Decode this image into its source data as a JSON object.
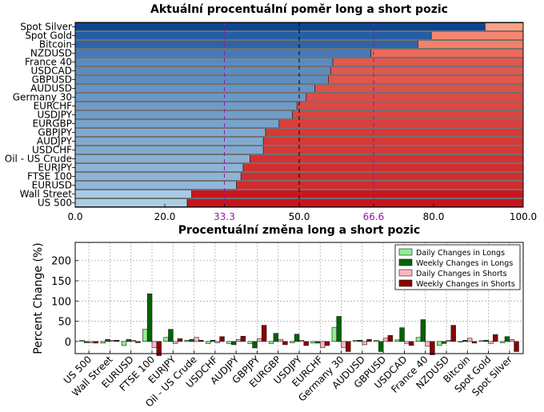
{
  "chart_data": [
    {
      "type": "bar",
      "orientation": "horizontal",
      "stacked": true,
      "title": "Aktuální procentuální poměr long a short pozic",
      "categories": [
        "Spot Silver",
        "Spot Gold",
        "Bitcoin",
        "NZDUSD",
        "France 40",
        "USDCAD",
        "GBPUSD",
        "AUDUSD",
        "Germany 30",
        "EURCHF",
        "USDJPY",
        "EURGBP",
        "GBPJPY",
        "AUDJPY",
        "USDCHF",
        "Oil - US Crude",
        "EURJPY",
        "FTSE 100",
        "EURUSD",
        "Wall Street",
        "US 500"
      ],
      "series": [
        {
          "name": "",
          "values": [
            91.5,
            79.5,
            76.5,
            66.0,
            57.5,
            57.0,
            56.5,
            53.5,
            51.5,
            49.5,
            48.5,
            45.5,
            42.5,
            42.0,
            42.0,
            39.0,
            37.5,
            37.0,
            36.0,
            26.0,
            25.0
          ]
        },
        {
          "name": "",
          "values": [
            8.5,
            20.5,
            23.5,
            34.0,
            42.5,
            43.0,
            43.5,
            46.5,
            48.5,
            50.5,
            51.5,
            54.5,
            57.5,
            58.0,
            58.0,
            61.0,
            62.5,
            63.0,
            64.0,
            74.0,
            75.0
          ]
        }
      ],
      "xlim": [
        0,
        100
      ],
      "xticks": [
        "0.0",
        "20.0",
        "33.3",
        "50.0",
        "66.6",
        "80.0",
        "100.0"
      ],
      "reference_lines": [
        33.3,
        50.0,
        66.6
      ],
      "xlabel": "",
      "ylabel": ""
    },
    {
      "type": "bar",
      "title": "Procentuální změna long a short pozic",
      "ylabel": "Percent Change (%)",
      "xlabel": "",
      "ylim": [
        -30,
        245
      ],
      "yticks": [
        "0",
        "50",
        "100",
        "150",
        "200"
      ],
      "grid": true,
      "legend_position": "top-right",
      "categories": [
        "US 500",
        "Wall Street",
        "EURUSD",
        "FTSE 100",
        "EURJPY",
        "Oil - US Crude",
        "USDCHF",
        "AUDJPY",
        "GBPJPY",
        "EURGBP",
        "USDJPY",
        "EURCHF",
        "Germany 30",
        "AUDUSD",
        "GBPUSD",
        "USDCAD",
        "France 40",
        "NZDUSD",
        "Bitcoin",
        "Spot Gold",
        "Spot Silver"
      ],
      "series": [
        {
          "name": "Daily Changes in Longs",
          "color": "#90ee90",
          "values": [
            3,
            -4,
            -10,
            30,
            10,
            3,
            -5,
            -5,
            -5,
            -5,
            -3,
            -4,
            35,
            3,
            3,
            4,
            10,
            -10,
            -1,
            2,
            -3
          ]
        },
        {
          "name": "Weekly Changes in Longs",
          "color": "#006400",
          "values": [
            -3,
            5,
            5,
            118,
            30,
            5,
            3,
            -8,
            -16,
            20,
            18,
            -4,
            62,
            3,
            -25,
            34,
            54,
            -5,
            3,
            3,
            12
          ]
        },
        {
          "name": "Daily Changes in Shorts",
          "color": "#ffb6c1",
          "values": [
            -3,
            3,
            3,
            -15,
            -5,
            10,
            -3,
            5,
            7,
            5,
            3,
            -15,
            -15,
            -8,
            8,
            -5,
            -12,
            3,
            8,
            -5,
            5
          ]
        },
        {
          "name": "Weekly Changes in Shorts",
          "color": "#8b0000",
          "values": [
            -4,
            3,
            -3,
            -35,
            7,
            3,
            12,
            13,
            40,
            -8,
            -10,
            -10,
            -25,
            5,
            15,
            -10,
            -33,
            40,
            -4,
            17,
            -25
          ]
        }
      ]
    }
  ]
}
